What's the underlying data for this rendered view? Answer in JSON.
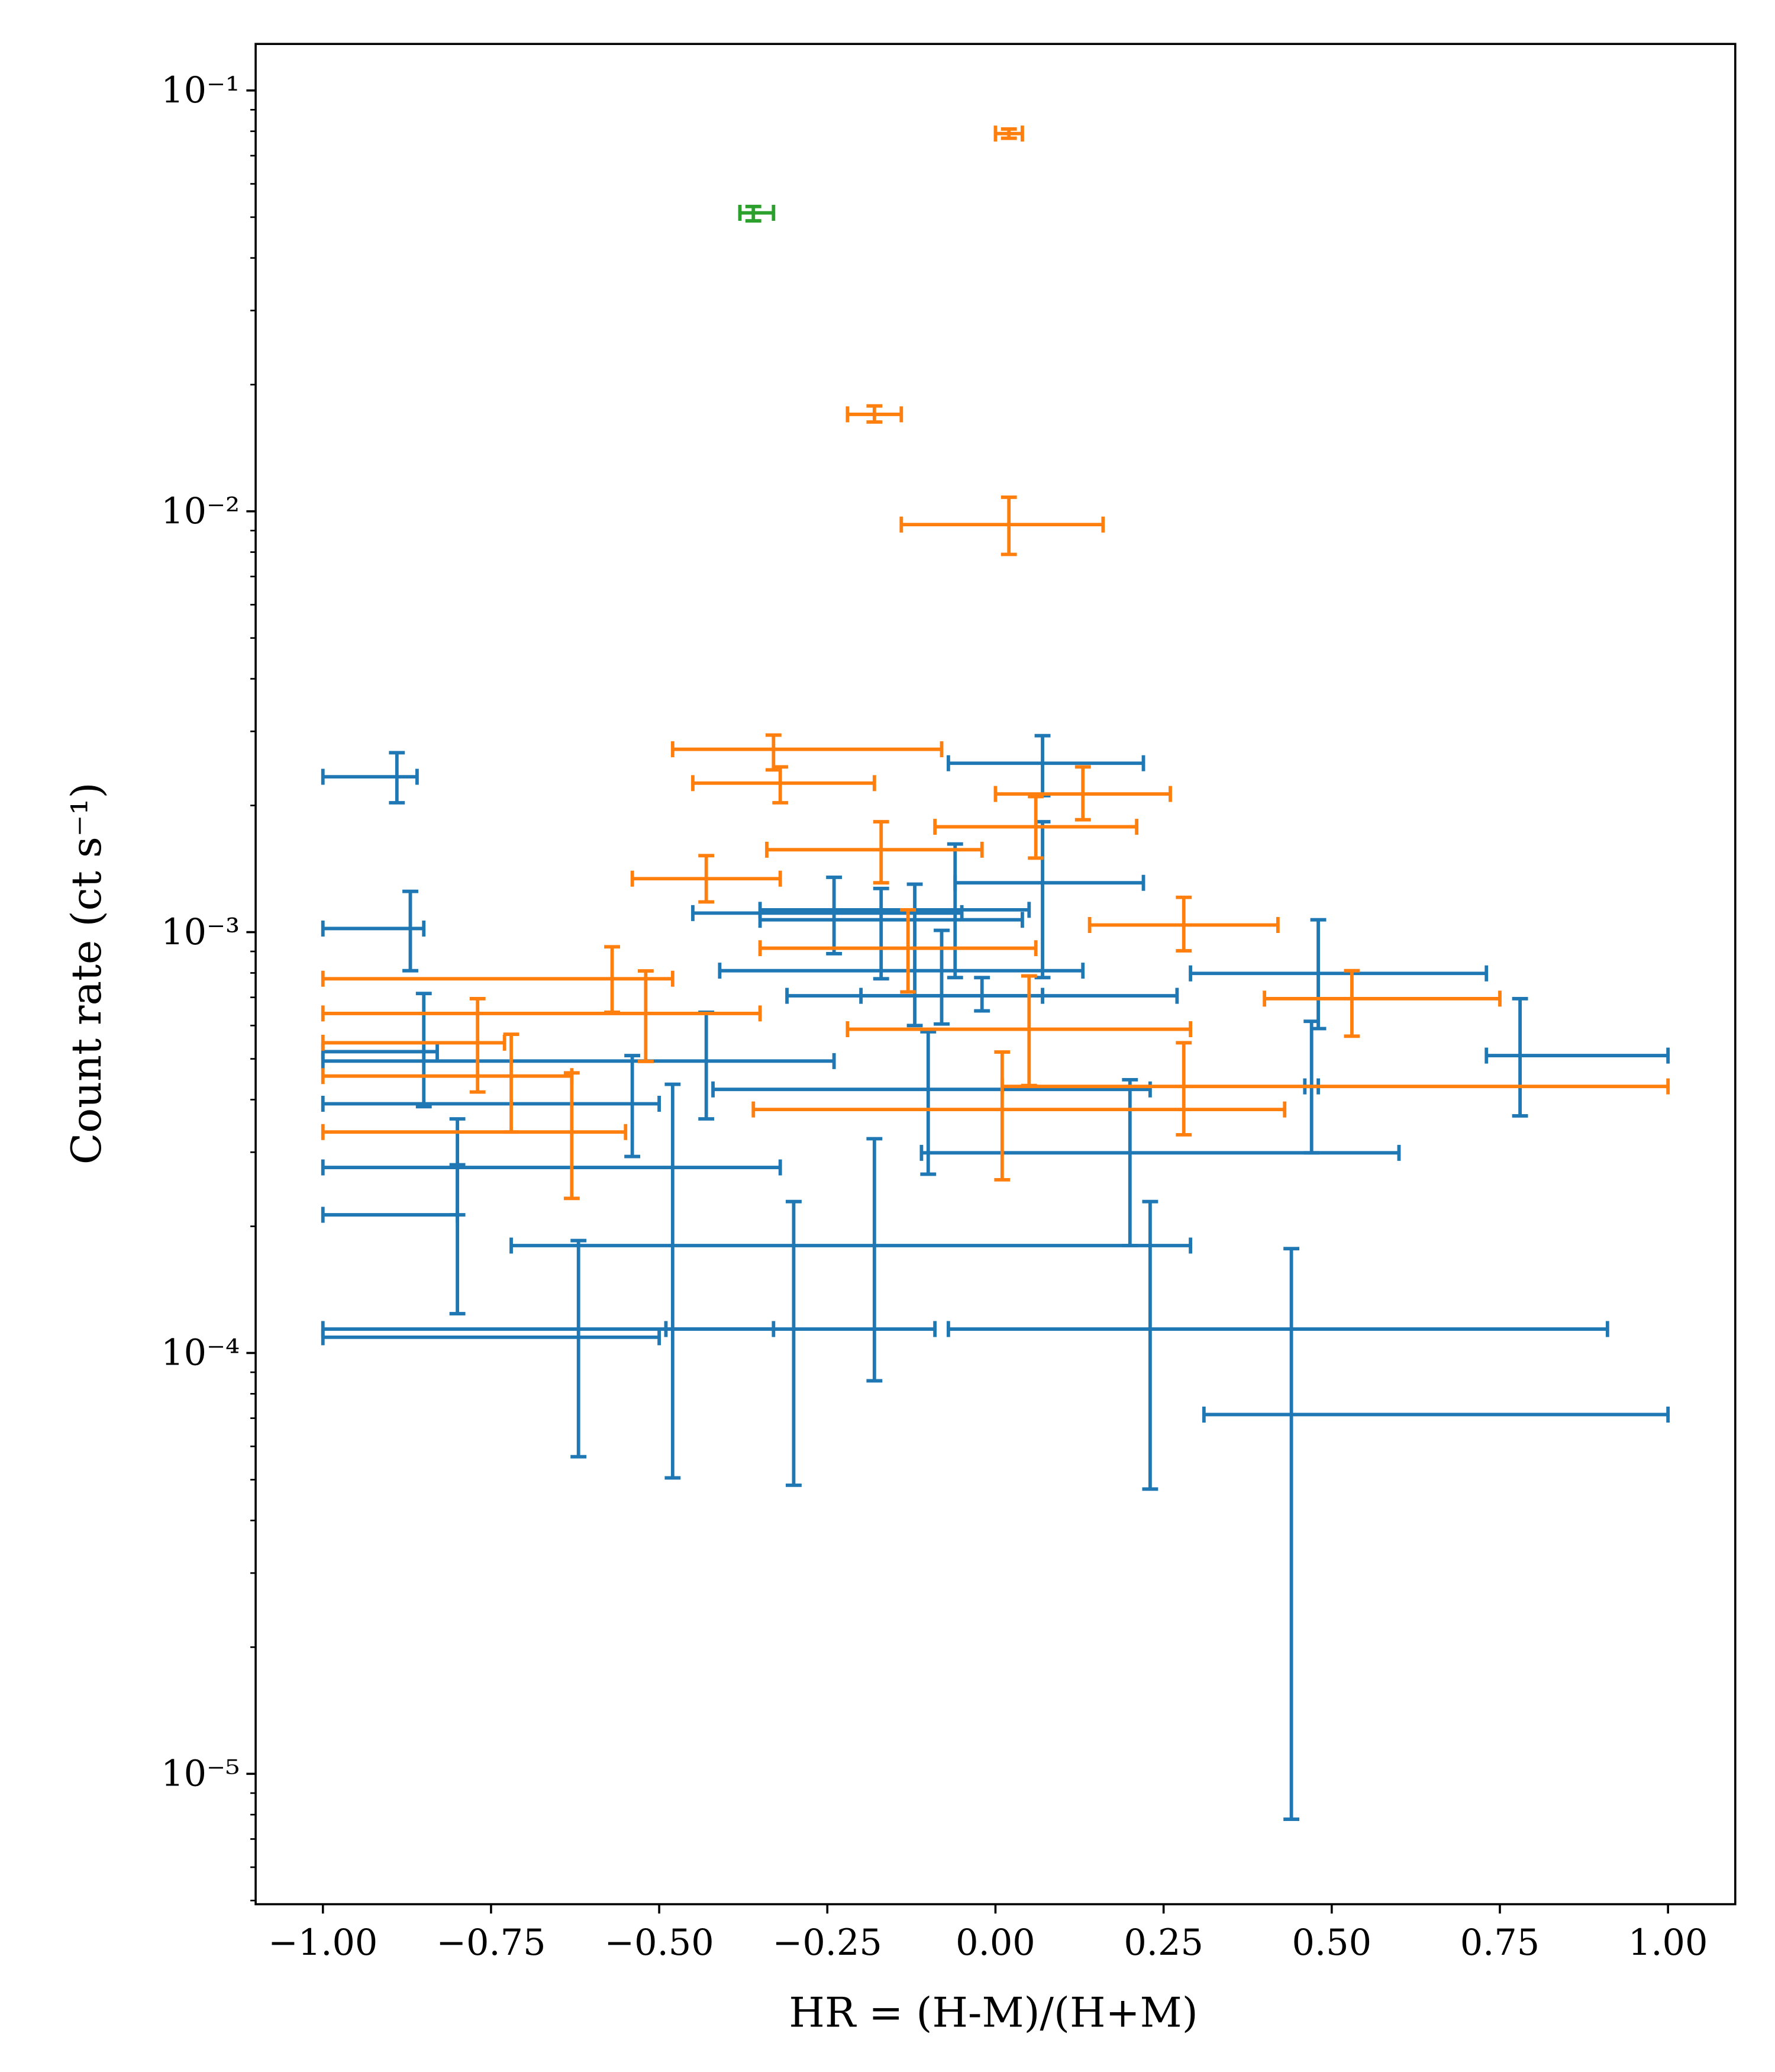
{
  "chart_data": {
    "type": "errorbar",
    "xlabel": "HR = (H-M)/(H+M)",
    "ylabel": "Count rate (ct s⁻¹)",
    "xlim": [
      -1.1,
      1.1
    ],
    "ylim": [
      4.9e-06,
      0.129
    ],
    "yscale": "log",
    "grid": false,
    "xticks": [
      {
        "value": -1,
        "label": "−1.00"
      },
      {
        "value": -0.75,
        "label": "−0.75"
      },
      {
        "value": -0.5,
        "label": "−0.50"
      },
      {
        "value": -0.25,
        "label": "−0.25"
      },
      {
        "value": 0,
        "label": "0.00"
      },
      {
        "value": 0.25,
        "label": "0.25"
      },
      {
        "value": 0.5,
        "label": "0.50"
      },
      {
        "value": 0.75,
        "label": "0.75"
      },
      {
        "value": 1,
        "label": "1.00"
      }
    ],
    "yticks": [
      {
        "value": 0.1,
        "label": "10⁻¹"
      },
      {
        "value": 0.01,
        "label": "10⁻²"
      },
      {
        "value": 0.001,
        "label": "10⁻³"
      },
      {
        "value": 0.0001,
        "label": "10⁻⁴"
      },
      {
        "value": 1e-05,
        "label": "10⁻⁵"
      }
    ],
    "yminorticks": [
      5e-06,
      6e-06,
      7e-06,
      8e-06,
      9e-06,
      2e-05,
      3e-05,
      4e-05,
      5e-05,
      6e-05,
      7e-05,
      8e-05,
      9e-05,
      0.0002,
      0.0003,
      0.0004,
      0.0005,
      0.0006,
      0.0007,
      0.0008,
      0.0009,
      0.002,
      0.003,
      0.004,
      0.005,
      0.006,
      0.007,
      0.008,
      0.009,
      0.02,
      0.03,
      0.04,
      0.05,
      0.06,
      0.07,
      0.08,
      0.09
    ],
    "series": [
      {
        "color": "#1f77b4",
        "x": [
          -0.89,
          0.07,
          -0.87,
          0.07,
          -0.24,
          -0.17,
          -0.06,
          -0.12,
          -0.08,
          -0.02,
          0.48,
          -0.85,
          -0.43,
          0.78,
          -0.1,
          0.47,
          -0.54,
          -0.8,
          -0.8,
          -0.18,
          0.2,
          -0.48,
          -0.62,
          -0.3,
          0.23,
          0.44
        ],
        "x_low": [
          -1,
          -0.07,
          -1,
          -0.06,
          -0.45,
          -0.35,
          -0.35,
          -0.41,
          -0.31,
          -0.2,
          0.29,
          -1,
          -1,
          0.73,
          -0.42,
          0.46,
          -1,
          -1,
          -1,
          -0.72,
          -0.11,
          -1,
          -1,
          -0.49,
          -0.07,
          0.31
        ],
        "x_high": [
          -0.86,
          0.22,
          -0.85,
          0.22,
          -0.05,
          0.04,
          0.05,
          0.13,
          0.27,
          0.07,
          0.73,
          -0.83,
          -0.24,
          1,
          0.23,
          0.48,
          -0.5,
          -0.32,
          -0.8,
          0.29,
          0.6,
          -0.33,
          -0.5,
          -0.09,
          0.91,
          1
        ],
        "values": [
          0.00234,
          0.00252,
          0.00102,
          0.00131,
          0.00111,
          0.00107,
          0.00113,
          0.00081,
          0.000706,
          0.000706,
          0.000798,
          0.00052,
          0.000494,
          0.000509,
          0.000423,
          0.00043,
          0.000391,
          0.000276,
          0.000213,
          0.00018,
          0.000299,
          0.000114,
          0.000109,
          0.000114,
          0.000114,
          7.14e-05
        ],
        "y_low": [
          0.00203,
          0.00211,
          0.00081,
          0.00078,
          0.000889,
          0.000775,
          0.00078,
          0.0006,
          0.000605,
          0.00065,
          0.00059,
          0.000385,
          0.00036,
          0.000366,
          0.000266,
          0.000299,
          0.000293,
          0.000213,
          0.000124,
          8.59e-05,
          0.00018,
          5.05e-05,
          5.67e-05,
          4.85e-05,
          4.75e-05,
          7.8e-06
        ],
        "y_high": [
          0.00267,
          0.00293,
          0.00125,
          0.00183,
          0.00135,
          0.00127,
          0.00162,
          0.0013,
          0.00101,
          0.00078,
          0.00107,
          0.000715,
          0.000645,
          0.000695,
          0.00058,
          0.000614,
          0.000509,
          0.00036,
          0.00028,
          0.000323,
          0.000446,
          0.000435,
          0.000185,
          0.000229,
          0.000229,
          0.000177
        ]
      },
      {
        "color": "#ff7f0e",
        "x": [
          0.02,
          -0.18,
          0.02,
          -0.33,
          -0.32,
          0.13,
          0.06,
          -0.17,
          -0.43,
          0.28,
          -0.13,
          -0.57,
          -0.52,
          0.53,
          -0.77,
          -0.72,
          -0.63,
          0.05,
          0.01,
          0.28
        ],
        "x_low": [
          0,
          -0.22,
          -0.14,
          -0.48,
          -0.45,
          0,
          -0.09,
          -0.34,
          -0.54,
          0.14,
          -0.35,
          -1,
          -1,
          0.4,
          -1,
          -1,
          -1,
          -0.22,
          -0.36,
          0.01
        ],
        "x_high": [
          0.04,
          -0.14,
          0.16,
          -0.08,
          -0.18,
          0.26,
          0.21,
          -0.02,
          -0.32,
          0.42,
          0.06,
          -0.48,
          -0.35,
          0.75,
          -0.73,
          -0.63,
          -0.55,
          0.29,
          0.43,
          1
        ],
        "values": [
          0.079,
          0.017,
          0.0093,
          0.00272,
          0.00226,
          0.00213,
          0.00178,
          0.00157,
          0.00134,
          0.00104,
          0.000916,
          0.000775,
          0.000641,
          0.000695,
          0.000546,
          0.000455,
          0.000335,
          0.000588,
          0.000379,
          0.00043
        ],
        "y_low": [
          0.077,
          0.0163,
          0.0079,
          0.00243,
          0.00203,
          0.00185,
          0.0015,
          0.00131,
          0.00118,
          0.000903,
          0.000721,
          0.000645,
          0.000493,
          0.000566,
          0.000417,
          0.000335,
          0.000233,
          0.000432,
          0.000258,
          0.00033
        ],
        "y_high": [
          0.081,
          0.0178,
          0.0108,
          0.00294,
          0.00247,
          0.00247,
          0.0021,
          0.00183,
          0.00152,
          0.00121,
          0.00113,
          0.000923,
          0.000809,
          0.00081,
          0.000695,
          0.000572,
          0.000463,
          0.000787,
          0.000519,
          0.000546
        ]
      },
      {
        "color": "#2ca02c",
        "x": [
          -0.36
        ],
        "x_low": [
          -0.38
        ],
        "x_high": [
          -0.33
        ],
        "values": [
          0.0512
        ],
        "y_low": [
          0.049
        ],
        "y_high": [
          0.053
        ]
      }
    ]
  }
}
